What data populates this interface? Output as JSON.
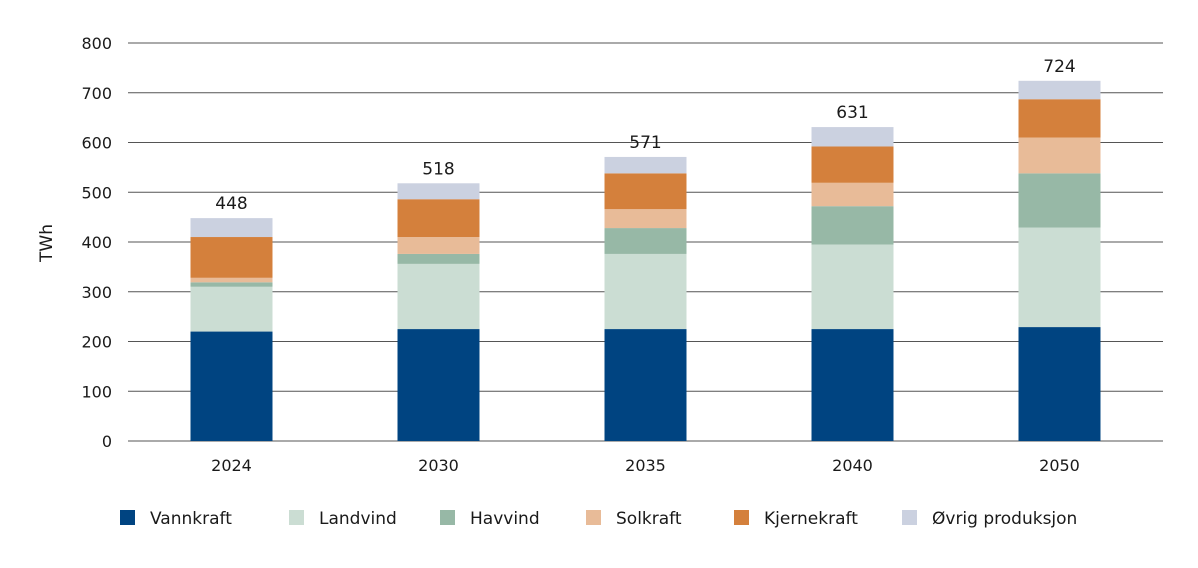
{
  "chart_data": {
    "type": "bar",
    "stacked": true,
    "title": "",
    "xlabel": "",
    "ylabel": "TWh",
    "ylim": [
      0,
      800
    ],
    "yticks": [
      0,
      100,
      200,
      300,
      400,
      500,
      600,
      700,
      800
    ],
    "grid": true,
    "legend_placement": "bottom",
    "categories": [
      "2024",
      "2030",
      "2035",
      "2040",
      "2050"
    ],
    "totals": [
      448,
      518,
      571,
      631,
      724
    ],
    "series": [
      {
        "name": "Vannkraft",
        "color": "#004481",
        "values": [
          220,
          225,
          225,
          225,
          229
        ]
      },
      {
        "name": "Landvind",
        "color": "#cbddd3",
        "values": [
          90,
          131,
          151,
          170,
          200
        ]
      },
      {
        "name": "Havvind",
        "color": "#97b8a6",
        "values": [
          9,
          20,
          52,
          77,
          109
        ]
      },
      {
        "name": "Solkraft",
        "color": "#e8bb98",
        "values": [
          9,
          34,
          38,
          47,
          72
        ]
      },
      {
        "name": "Kjernekraft",
        "color": "#d4803c",
        "values": [
          82,
          76,
          72,
          73,
          77
        ]
      },
      {
        "name": "Øvrig produksjon",
        "color": "#cbd1e0",
        "values": [
          38,
          32,
          33,
          39,
          37
        ]
      }
    ]
  }
}
